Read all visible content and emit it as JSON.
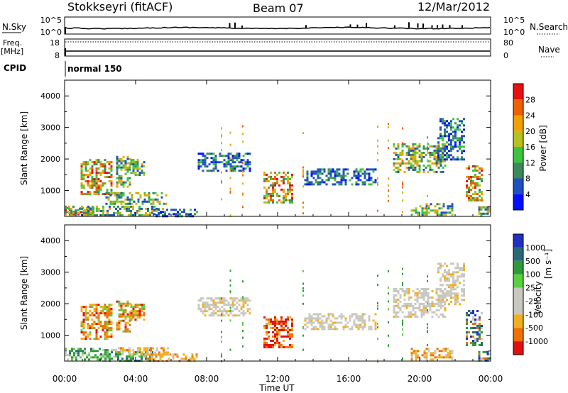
{
  "header": {
    "station": "Stokkseyri (fitACF)",
    "beam": "Beam 07",
    "date": "12/Mar/2012"
  },
  "top_panels": {
    "nsky_label": "N.Sky",
    "nsky_ticks": [
      "10^5",
      "10^0"
    ],
    "nsearch_label": "N.Search",
    "nsearch_ticks": [
      "10^5",
      "10^0"
    ],
    "freq_label": "Freq.",
    "freq_unit": "[MHz]",
    "freq_ticks": [
      "18",
      "8"
    ],
    "nave_label": "Nave",
    "nave_ticks": [
      "80",
      "0"
    ],
    "cpid_label": "CPID",
    "cpid_value": "normal 150"
  },
  "chart_data": [
    {
      "type": "heatmap",
      "name": "power",
      "ylabel": "Slant Range [km]",
      "yticks": [
        "1000",
        "2000",
        "3000",
        "4000"
      ],
      "ylim": [
        180,
        4500
      ],
      "xlim_hours": [
        0,
        24
      ],
      "colorbar_label": "Power [dB]",
      "colorbar_ticks": [
        "4",
        "8",
        "12",
        "16",
        "20",
        "24",
        "28"
      ],
      "colorbar_colors": [
        "#0010ff",
        "#2050c0",
        "#3a8a5a",
        "#3cc43c",
        "#b8c020",
        "#f0a000",
        "#f06000",
        "#e81010"
      ],
      "echo_regions": [
        {
          "t0": 0.0,
          "t1": 1.6,
          "r0": 220,
          "r1": 480,
          "v": "strong"
        },
        {
          "t0": 0.9,
          "t1": 2.7,
          "r0": 900,
          "r1": 2000,
          "v": "strong"
        },
        {
          "t0": 2.9,
          "t1": 3.7,
          "r0": 1100,
          "r1": 2100,
          "v": "mid"
        },
        {
          "t0": 3.7,
          "t1": 4.5,
          "r0": 1500,
          "r1": 2000,
          "v": "mid"
        },
        {
          "t0": 2.3,
          "t1": 5.7,
          "r0": 600,
          "r1": 950,
          "v": "mid"
        },
        {
          "t0": 0.2,
          "t1": 5.5,
          "r0": 200,
          "r1": 520,
          "v": "mid"
        },
        {
          "t0": 5.0,
          "t1": 7.5,
          "r0": 200,
          "r1": 420,
          "v": "weak"
        },
        {
          "t0": 7.5,
          "t1": 10.5,
          "r0": 1600,
          "r1": 2200,
          "v": "weak"
        },
        {
          "t0": 11.2,
          "t1": 12.8,
          "r0": 600,
          "r1": 1600,
          "v": "strong"
        },
        {
          "t0": 13.5,
          "t1": 17.5,
          "r0": 1200,
          "r1": 1700,
          "v": "weak"
        },
        {
          "t0": 18.5,
          "t1": 21.5,
          "r0": 1600,
          "r1": 2500,
          "v": "mid"
        },
        {
          "t0": 21.0,
          "t1": 22.5,
          "r0": 2000,
          "r1": 3300,
          "v": "weak"
        },
        {
          "t0": 19.5,
          "t1": 21.8,
          "r0": 220,
          "r1": 600,
          "v": "mid"
        },
        {
          "t0": 22.6,
          "t1": 23.5,
          "r0": 700,
          "r1": 1800,
          "v": "strong"
        },
        {
          "t0": 23.3,
          "t1": 24.0,
          "r0": 200,
          "r1": 500,
          "v": "mid"
        }
      ]
    },
    {
      "type": "heatmap",
      "name": "velocity",
      "ylabel": "Slant Range [km]",
      "yticks": [
        "1000",
        "2000",
        "3000",
        "4000"
      ],
      "ylim": [
        180,
        4500
      ],
      "xlim_hours": [
        0,
        24
      ],
      "colorbar_label": "Velocity",
      "colorbar_unit": "[m s⁻¹]",
      "colorbar_ticks": [
        "1000",
        "500",
        "100",
        "25",
        "-25",
        "-100",
        "-500",
        "-1000"
      ],
      "colorbar_colors": [
        "#2030c0",
        "#2a6a78",
        "#2e9a3a",
        "#58d040",
        "#c8c8c0",
        "#c8c8c0",
        "#f0b020",
        "#f07000",
        "#e01010"
      ],
      "echo_regions": [
        {
          "t0": 0.0,
          "t1": 2.0,
          "r0": 220,
          "r1": 600,
          "v": "slowpos"
        },
        {
          "t0": 0.9,
          "t1": 2.7,
          "r0": 900,
          "r1": 2000,
          "v": "neg"
        },
        {
          "t0": 2.9,
          "t1": 3.7,
          "r0": 1100,
          "r1": 2100,
          "v": "neg"
        },
        {
          "t0": 3.7,
          "t1": 4.5,
          "r0": 1500,
          "r1": 2000,
          "v": "neg"
        },
        {
          "t0": 2.0,
          "t1": 5.0,
          "r0": 200,
          "r1": 560,
          "v": "slowpos"
        },
        {
          "t0": 3.0,
          "t1": 6.0,
          "r0": 380,
          "r1": 620,
          "v": "slowneg"
        },
        {
          "t0": 4.5,
          "t1": 7.5,
          "r0": 200,
          "r1": 420,
          "v": "slowneg"
        },
        {
          "t0": 7.5,
          "t1": 10.5,
          "r0": 1600,
          "r1": 2200,
          "v": "zero"
        },
        {
          "t0": 11.2,
          "t1": 12.8,
          "r0": 600,
          "r1": 1600,
          "v": "fastneg"
        },
        {
          "t0": 13.5,
          "t1": 17.5,
          "r0": 1200,
          "r1": 1700,
          "v": "zero"
        },
        {
          "t0": 18.5,
          "t1": 21.5,
          "r0": 1600,
          "r1": 2500,
          "v": "zero"
        },
        {
          "t0": 21.0,
          "t1": 22.5,
          "r0": 2000,
          "r1": 3300,
          "v": "zero"
        },
        {
          "t0": 19.5,
          "t1": 21.8,
          "r0": 220,
          "r1": 600,
          "v": "slowneg"
        },
        {
          "t0": 22.6,
          "t1": 23.5,
          "r0": 700,
          "r1": 1800,
          "v": "pos"
        },
        {
          "t0": 23.3,
          "t1": 24.0,
          "r0": 200,
          "r1": 500,
          "v": "pos"
        }
      ]
    }
  ],
  "xaxis": {
    "ticks": [
      "00:00",
      "04:00",
      "08:00",
      "12:00",
      "16:00",
      "20:00",
      "00:00"
    ],
    "label": "Time UT"
  }
}
